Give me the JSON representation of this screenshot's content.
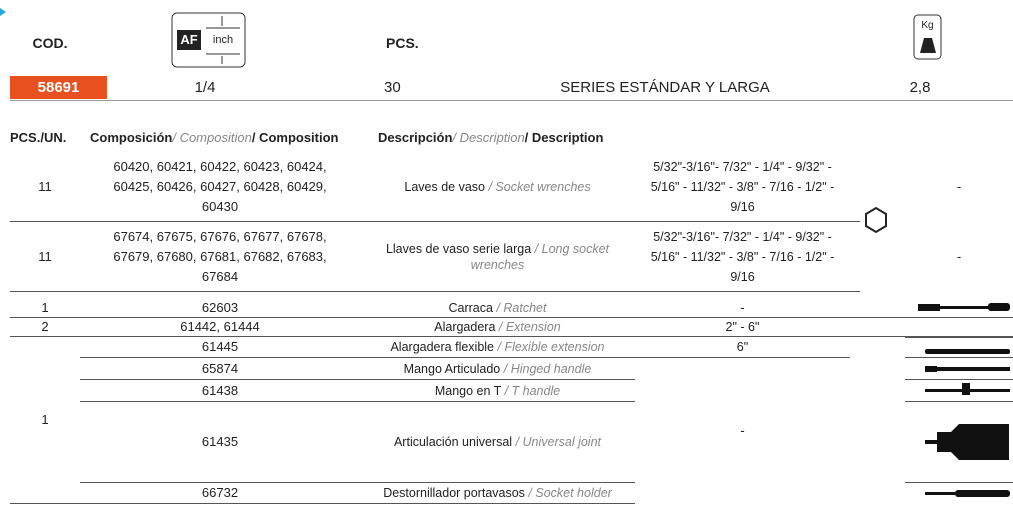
{
  "header": {
    "cod_label": "COD.",
    "af_icon": {
      "af": "AF",
      "inch": "inch"
    },
    "pcs_label": "PCS.",
    "kg_icon": "Kg"
  },
  "product": {
    "code": "58691",
    "drive": "1/4",
    "pcs": 30,
    "series": "SERIES ESTÁNDAR Y LARGA",
    "weight": "2,8"
  },
  "table": {
    "columns": [
      {
        "es": "PCS./UN."
      },
      {
        "es": "Composición",
        "en": "/ Composition",
        "fr": "/ Composition"
      },
      {
        "es": "Descripción",
        "en": "/ Description",
        "fr": "/ Description"
      }
    ],
    "rows": [
      {
        "pcs": 11,
        "composition": "60420, 60421, 60422, 60423, 60424, 60425, 60426, 60427, 60428, 60429, 60430",
        "desc_es": "Laves de vaso",
        "desc_en": "/ Socket wrenches",
        "sizes": "5/32\"-3/16\"- 7/32\" - 1/4\" - 9/32\" - 5/16\" - 11/32\" - 3/8\" - 7/16 - 1/2\" -  9/16",
        "extra": "-"
      },
      {
        "pcs": 11,
        "composition": "67674, 67675, 67676, 67677, 67678, 67679, 67680, 67681, 67682, 67683, 67684",
        "desc_es": "Llaves de vaso serie larga",
        "desc_en": "/ Long socket wrenches",
        "sizes": "5/32\"-3/16\"- 7/32\" - 1/4\" - 9/32\" - 5/16\" - 11/32\" - 3/8\" - 7/16 - 1/2\" -  9/16",
        "extra": "-"
      },
      {
        "pcs": 1,
        "composition": "62603",
        "desc_es": "Carraca",
        "desc_en": "/ Ratchet",
        "sizes": "-"
      },
      {
        "pcs": 2,
        "composition": "61442, 61444",
        "desc_es": "Alargadera",
        "desc_en": "/ Extension",
        "sizes": "2\" - 6\""
      }
    ],
    "group": {
      "pcs": 1,
      "first_size": "6\"",
      "shared_size": "-",
      "rows": [
        {
          "composition": "61445",
          "desc_es": "Alargadera flexible",
          "desc_en": "/ Flexible extension"
        },
        {
          "composition": "65874",
          "desc_es": "Mango Articulado",
          "desc_en": "/ Hinged handle"
        },
        {
          "composition": "61438",
          "desc_es": "Mango en T",
          "desc_en": "/ T handle"
        },
        {
          "composition": "61435",
          "desc_es": "Articulación universal",
          "desc_en": "/ Universal joint"
        },
        {
          "composition": "66732",
          "desc_es": "Destornillador portavasos",
          "desc_en": "/ Socket holder"
        }
      ]
    }
  }
}
